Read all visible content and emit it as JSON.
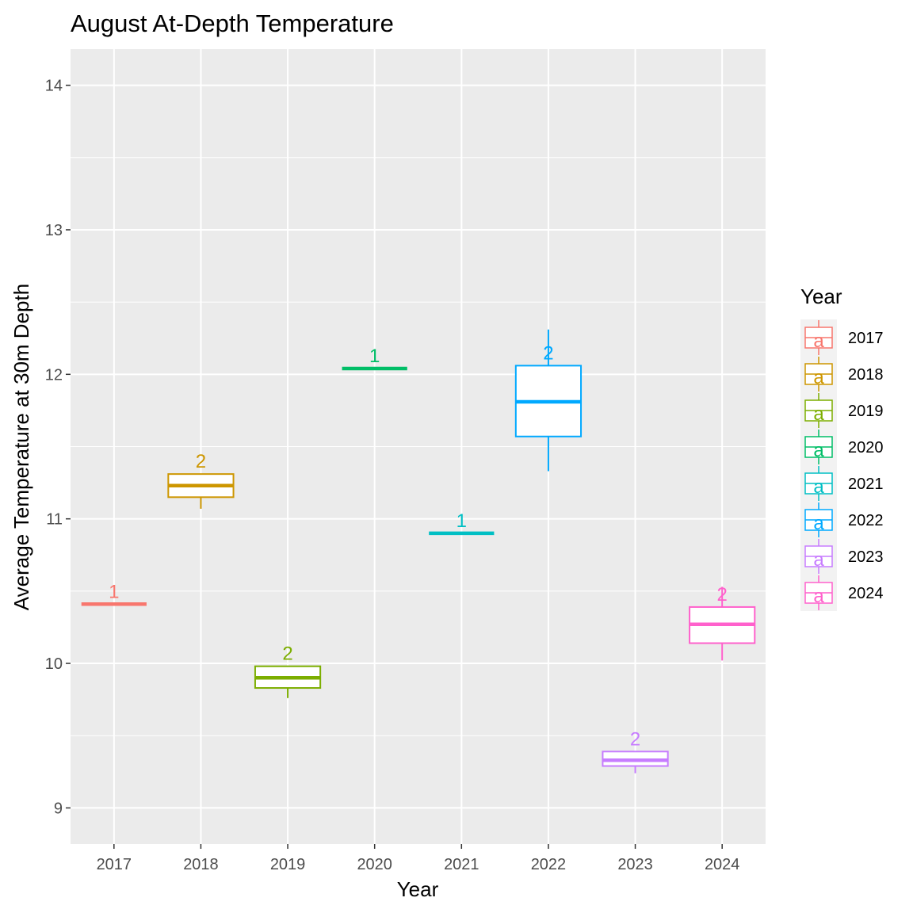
{
  "chart_data": {
    "type": "boxplot",
    "title": "August At-Depth Temperature",
    "xlabel": "Year",
    "ylabel": "Average Temperature at 30m Depth",
    "ylim": [
      8.75,
      14.25
    ],
    "yticks": [
      9,
      10,
      11,
      12,
      13,
      14
    ],
    "grid": true,
    "legend": {
      "title": "Year",
      "placement": "right",
      "glyph": "a"
    },
    "categories": [
      "2017",
      "2018",
      "2019",
      "2020",
      "2021",
      "2022",
      "2023",
      "2024"
    ],
    "colors": [
      "#F8766D",
      "#CD9600",
      "#7CAE00",
      "#00BE67",
      "#00BFC4",
      "#00A9FF",
      "#C77CFF",
      "#FF61CC"
    ],
    "series": [
      {
        "name": "2017",
        "min": 10.41,
        "q1": 10.41,
        "median": 10.41,
        "q3": 10.41,
        "max": 10.41,
        "label": "1"
      },
      {
        "name": "2018",
        "min": 11.07,
        "q1": 11.15,
        "median": 11.23,
        "q3": 11.31,
        "max": 11.31,
        "label": "2"
      },
      {
        "name": "2019",
        "min": 9.76,
        "q1": 9.83,
        "median": 9.9,
        "q3": 9.98,
        "max": 9.98,
        "label": "2"
      },
      {
        "name": "2020",
        "min": 12.04,
        "q1": 12.04,
        "median": 12.04,
        "q3": 12.04,
        "max": 12.04,
        "label": "1"
      },
      {
        "name": "2021",
        "min": 10.9,
        "q1": 10.9,
        "median": 10.9,
        "q3": 10.9,
        "max": 10.9,
        "label": "1"
      },
      {
        "name": "2022",
        "min": 11.33,
        "q1": 11.57,
        "median": 11.81,
        "q3": 12.06,
        "max": 12.31,
        "label": "2"
      },
      {
        "name": "2023",
        "min": 9.24,
        "q1": 9.29,
        "median": 9.33,
        "q3": 9.39,
        "max": 9.39,
        "label": "2"
      },
      {
        "name": "2024",
        "min": 10.02,
        "q1": 10.14,
        "median": 10.27,
        "q3": 10.39,
        "max": 10.53,
        "label": "2"
      }
    ]
  }
}
